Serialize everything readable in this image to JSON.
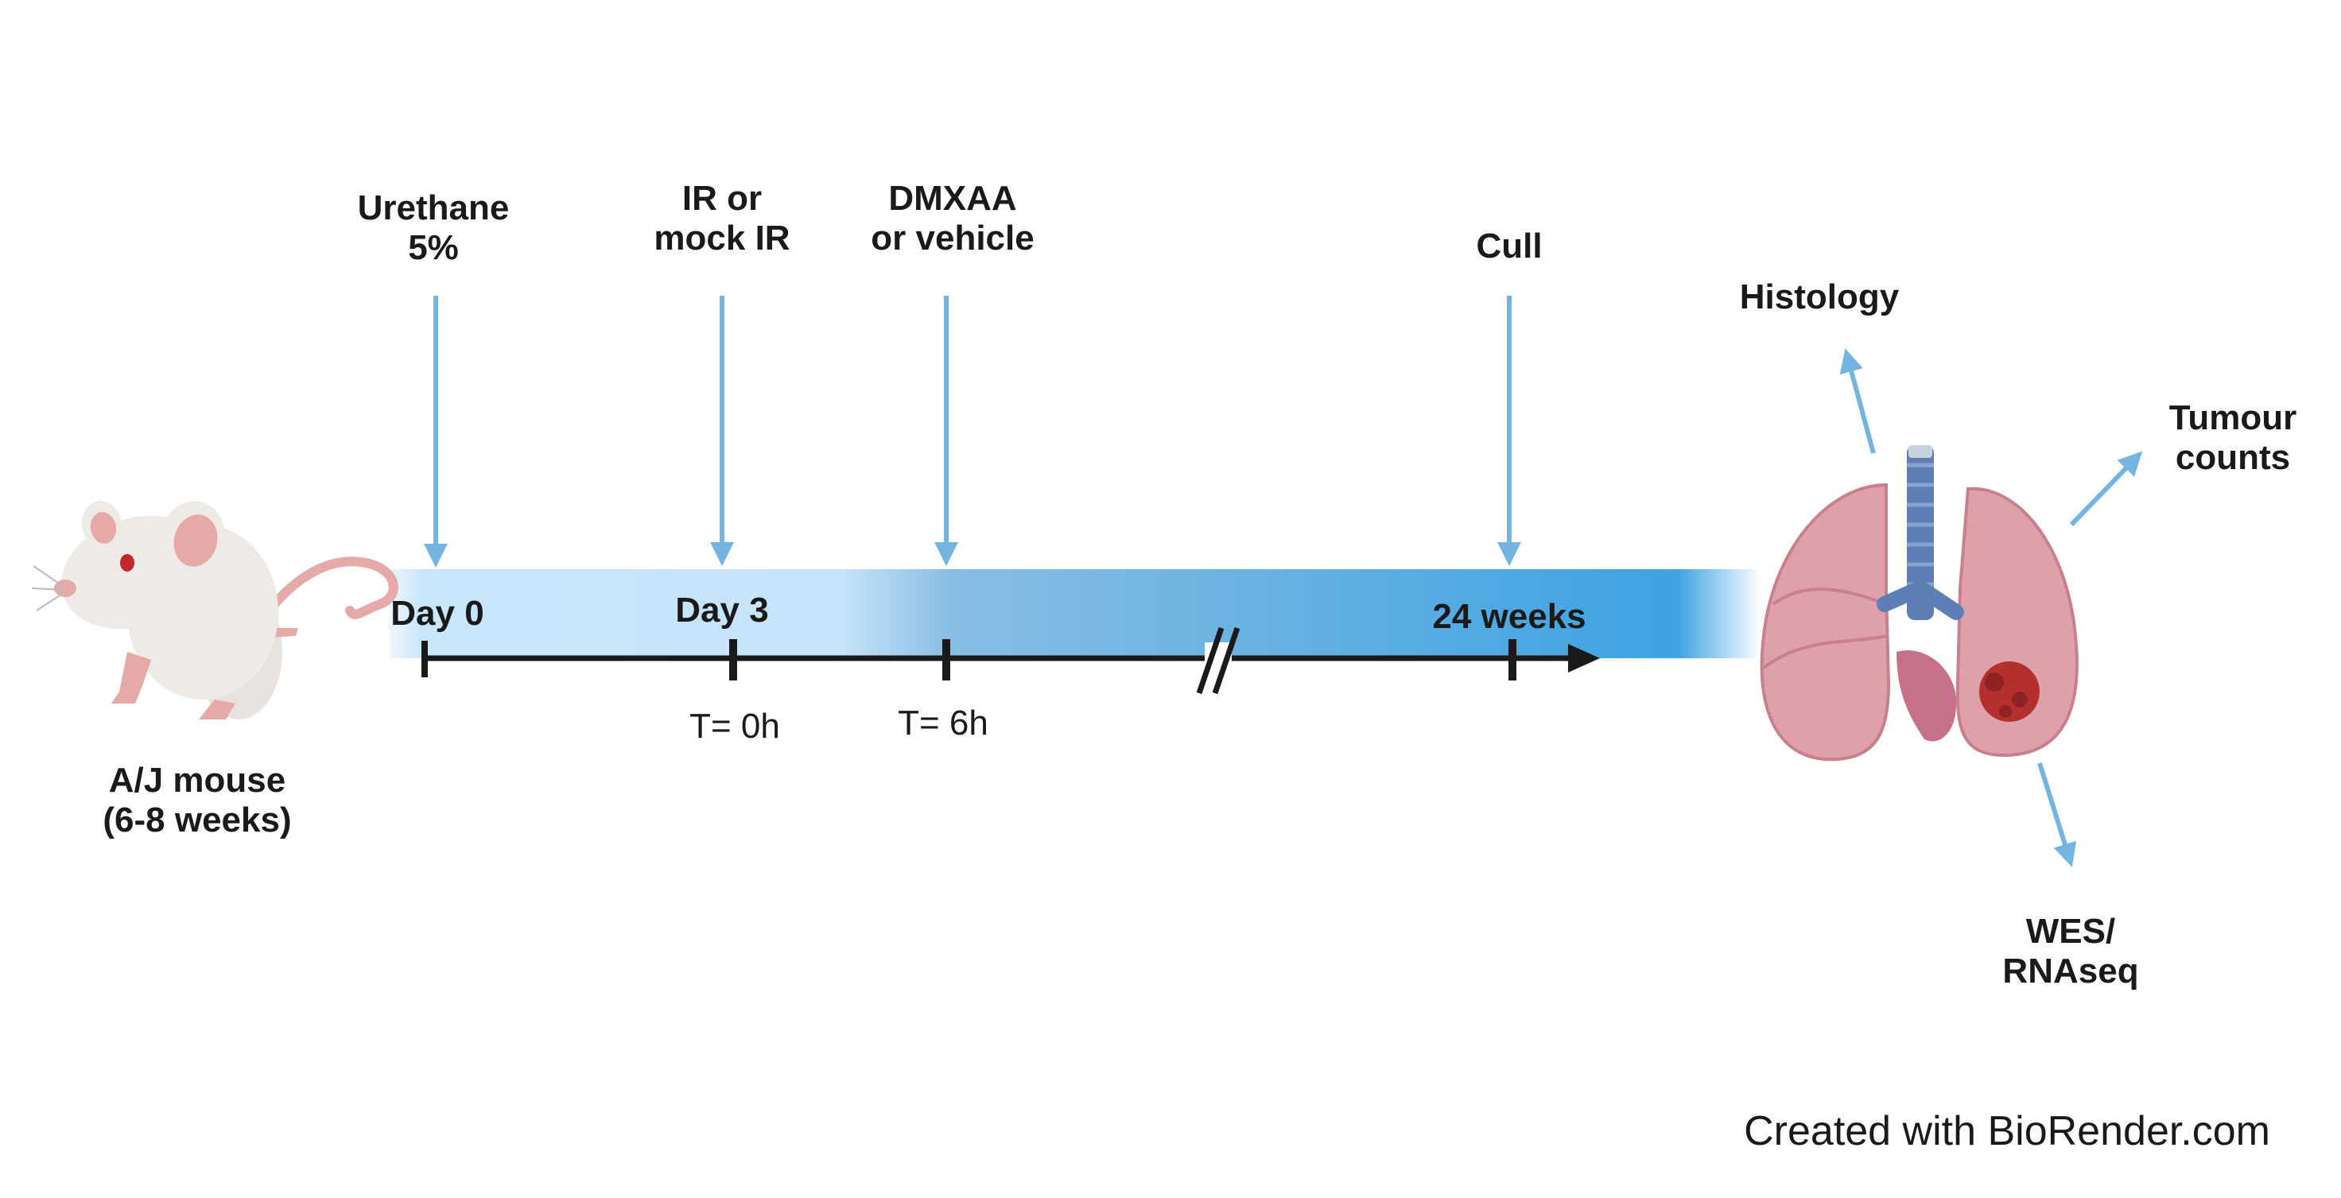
{
  "colors": {
    "arrow": "#74b4e0",
    "bar_light": "#c9e6fb",
    "bar_dark": "#3ea3e2",
    "axis": "#1a1a1a",
    "lung": "#dea1aa",
    "lung_dark": "#c7808c",
    "trachea": "#5d7fb5",
    "tumour": "#b3302f",
    "mouse_body": "#eeeae6",
    "mouse_pink": "#e5a9a7"
  },
  "mouse": {
    "line1": "A/J mouse",
    "line2": "(6-8 weeks)"
  },
  "events": [
    {
      "line1": "Urethane",
      "line2": "5%"
    },
    {
      "line1": "IR or",
      "line2": "mock IR"
    },
    {
      "line1": "DMXAA",
      "line2": "or vehicle"
    },
    {
      "line1": "Cull",
      "line2": ""
    }
  ],
  "day_labels": [
    "Day 0",
    "Day 3",
    "24 weeks"
  ],
  "time_labels": [
    "T= 0h",
    "T= 6h"
  ],
  "outputs": {
    "histology": "Histology",
    "tumour_line1": "Tumour",
    "tumour_line2": "counts",
    "wes_line1": "WES/",
    "wes_line2": "RNAseq"
  },
  "icons": [
    "mouse-icon",
    "lungs-icon",
    "tumour-icon",
    "axis-break-icon"
  ],
  "credit": "Created with BioRender.com"
}
